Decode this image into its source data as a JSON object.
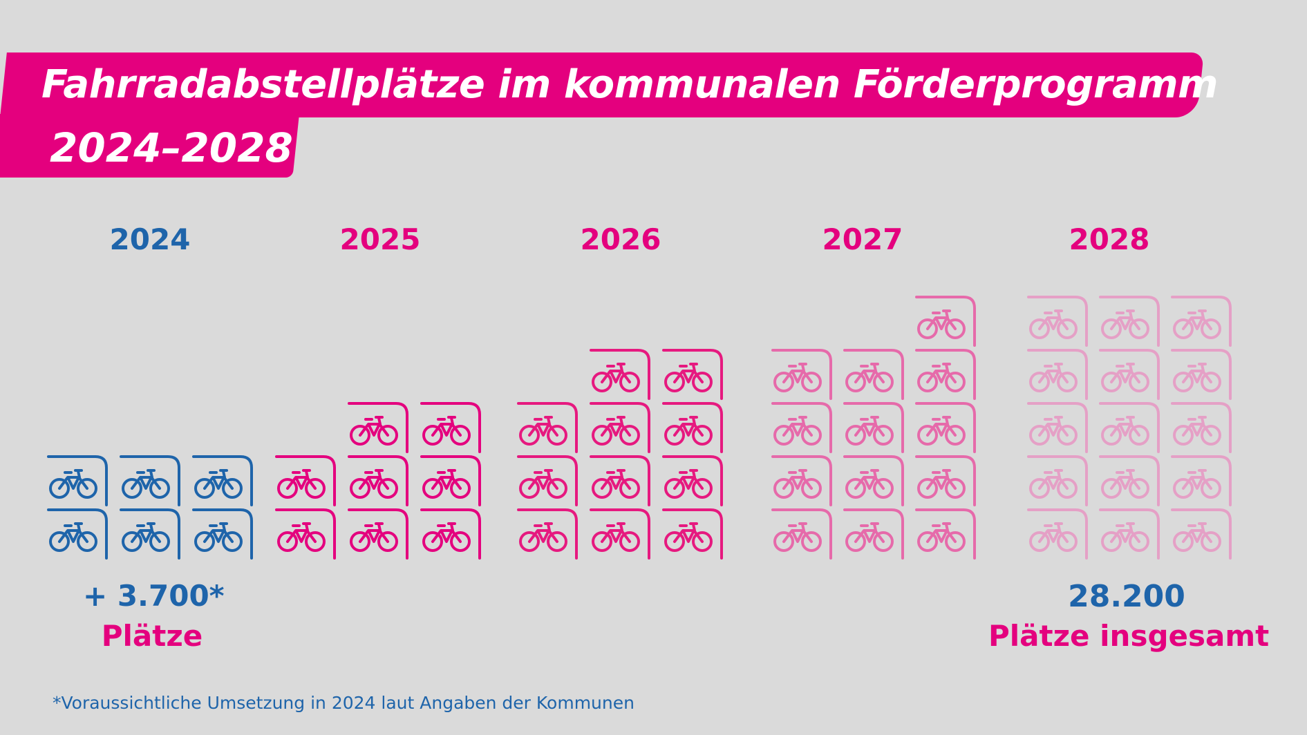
{
  "title": "Fahrradabstellplätze im kommunalen Förderprogramm",
  "subtitle": "2024–2028",
  "chart_data": {
    "type": "pictograph",
    "title": "Fahrradabstellplätze im kommunalen Förderprogramm 2024–2028",
    "unit_icon": "bicycle-parking-icon",
    "categories": [
      "2024",
      "2025",
      "2026",
      "2027",
      "2028"
    ],
    "icon_counts": [
      6,
      8,
      11,
      13,
      15
    ],
    "colors": [
      "#1e64aa",
      "#e4007e",
      "#e6197f",
      "#e66aaa",
      "#e5a0c6"
    ],
    "year_label_colors": [
      "#1e64aa",
      "#e4007e",
      "#e4007e",
      "#e4007e",
      "#e4007e"
    ],
    "annotations": {
      "first_value": "+ 3.700*",
      "first_label": "Plätze",
      "total_value": "28.200",
      "total_label": "Plätze insgesamt"
    },
    "footnote": "*Voraussichtliche Umsetzung in 2024 laut Angaben der Kommunen"
  }
}
